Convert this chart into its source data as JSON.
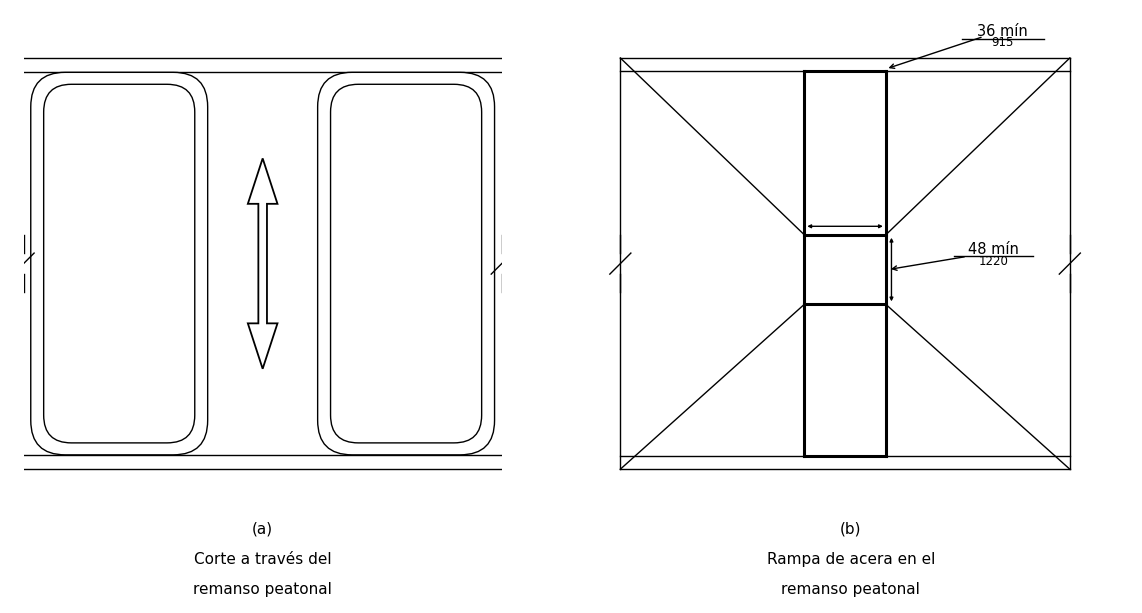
{
  "fig_width": 11.42,
  "fig_height": 6.13,
  "bg_color": "#ffffff",
  "line_color": "#000000",
  "label_a": "(a)",
  "label_b": "(b)",
  "caption_a_line1": "Corte a través del",
  "caption_a_line2": "remanso peatonal",
  "caption_b_line1": "Rampa de acera en el",
  "caption_b_line2": "remanso peatonal",
  "dim_36_label": "36 mín",
  "dim_36_sub": "915",
  "dim_48_label": "48 mín",
  "dim_48_sub": "1220"
}
